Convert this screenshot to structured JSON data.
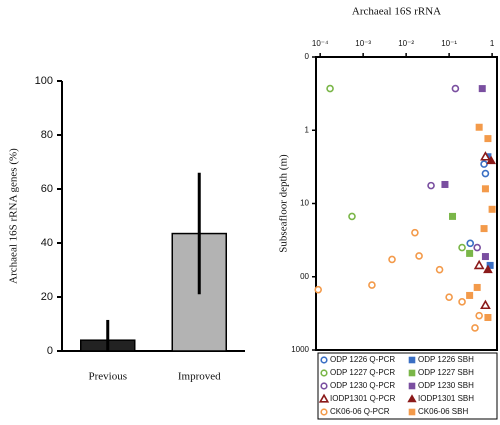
{
  "chart_data": [
    {
      "type": "bar",
      "ylabel": "Archaeal 16S rRNA genes (%)",
      "categories": [
        "Previous",
        "Improved"
      ],
      "values": [
        4,
        43.5
      ],
      "errors": [
        7.5,
        22.5
      ],
      "colors": [
        "#222222",
        "#b3b3b3"
      ],
      "ylim": [
        0,
        100
      ],
      "yticks": [
        0,
        20,
        40,
        60,
        80,
        100
      ]
    },
    {
      "type": "scatter",
      "title": "Archaeal 16S rRNA",
      "ylabel": "Subseafloor depth (m)",
      "xscale": "log",
      "yscale": "log",
      "yinverted": true,
      "legend": "bottom",
      "xlim": [
        8e-05,
        1.3
      ],
      "xticks": [
        {
          "value": 0.0001,
          "label": "10⁻⁴"
        },
        {
          "value": 0.001,
          "label": "10⁻³"
        },
        {
          "value": 0.01,
          "label": "10⁻²"
        },
        {
          "value": 0.1,
          "label": "10⁻¹"
        },
        1
      ],
      "ylim": [
        0.1,
        1000
      ],
      "yticks": [
        {
          "value": 0.1,
          "label": "0"
        },
        1,
        10,
        {
          "value": 100,
          "label": "00"
        },
        1000
      ],
      "series": [
        {
          "name": "ODP 1226 Q-PCR",
          "color": "#3a6fc4",
          "marker": "circle-open",
          "x": [
            0.65,
            0.7,
            0.31
          ],
          "values": [
            2.9,
            3.9,
            35
          ]
        },
        {
          "name": "ODP 1226 SBH",
          "color": "#3a6fc4",
          "marker": "square",
          "x": [
            0.8,
            0.9
          ],
          "values": [
            2.3,
            70
          ]
        },
        {
          "name": "ODP 1227 Q-PCR",
          "color": "#7ab648",
          "marker": "circle-open",
          "x": [
            0.00017,
            0.00055,
            0.2
          ],
          "values": [
            0.27,
            15,
            40
          ]
        },
        {
          "name": "ODP 1227 SBH",
          "color": "#7ab648",
          "marker": "square",
          "x": [
            0.12,
            0.3
          ],
          "values": [
            15,
            48
          ]
        },
        {
          "name": "ODP 1230 Q-PCR",
          "color": "#7a4fa0",
          "marker": "circle-open",
          "x": [
            0.14,
            0.038,
            0.45
          ],
          "values": [
            0.27,
            5.7,
            40
          ]
        },
        {
          "name": "ODP 1230 SBH",
          "color": "#7a4fa0",
          "marker": "square",
          "x": [
            0.59,
            0.08,
            0.7
          ],
          "values": [
            0.27,
            5.5,
            53
          ]
        },
        {
          "name": "IODP1301 Q-PCR",
          "color": "#8b1a1a",
          "marker": "triangle-open",
          "x": [
            0.7,
            0.5,
            0.7
          ],
          "values": [
            2.3,
            70,
            245
          ]
        },
        {
          "name": "IODP1301 SBH",
          "color": "#8b1a1a",
          "marker": "triangle",
          "x": [
            0.95,
            0.8
          ],
          "values": [
            2.6,
            80
          ]
        },
        {
          "name": "CK06-06 Q-PCR",
          "color": "#f39a4a",
          "marker": "circle-open",
          "x": [
            9e-05,
            0.0016,
            0.0047,
            0.016,
            0.02,
            0.06,
            0.1,
            0.2,
            0.5,
            0.4
          ],
          "values": [
            150,
            130,
            58,
            25,
            52,
            80,
            190,
            220,
            340,
            500
          ]
        },
        {
          "name": "CK06-06 SBH",
          "color": "#f39a4a",
          "marker": "square",
          "x": [
            0.5,
            0.8,
            0.7,
            1.0,
            0.65,
            0.3,
            0.8,
            0.45
          ],
          "values": [
            0.91,
            1.3,
            6.3,
            12,
            22,
            180,
            360,
            140
          ]
        }
      ]
    }
  ]
}
